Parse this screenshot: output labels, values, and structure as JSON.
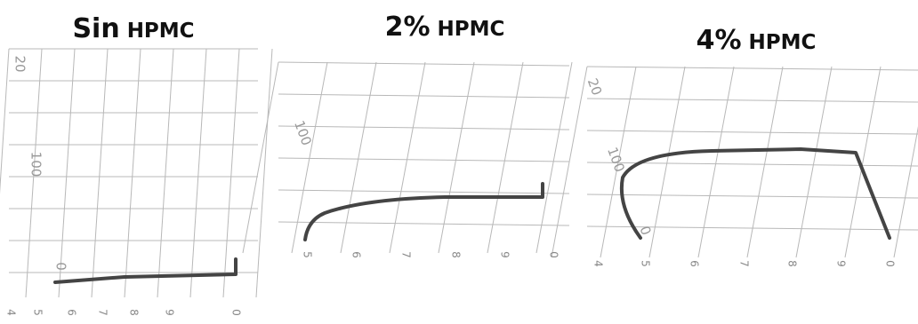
{
  "panels": [
    {
      "title": {
        "main": "Sin",
        "unit": "HPMC"
      },
      "y_labels": [
        "20",
        "100",
        "0"
      ],
      "x_labels": [
        "4",
        "5",
        "6",
        "7",
        "8",
        "9",
        "0"
      ]
    },
    {
      "title": {
        "main": "2%",
        "unit": "HPMC"
      },
      "y_labels": [
        "100"
      ],
      "x_labels": [
        "5",
        "6",
        "7",
        "8",
        "9",
        "0"
      ]
    },
    {
      "title": {
        "main": "4%",
        "unit": "HPMC"
      },
      "y_labels": [
        "20",
        "100",
        "0"
      ],
      "x_labels": [
        "4",
        "5",
        "6",
        "7",
        "8",
        "9",
        "0"
      ]
    }
  ]
}
